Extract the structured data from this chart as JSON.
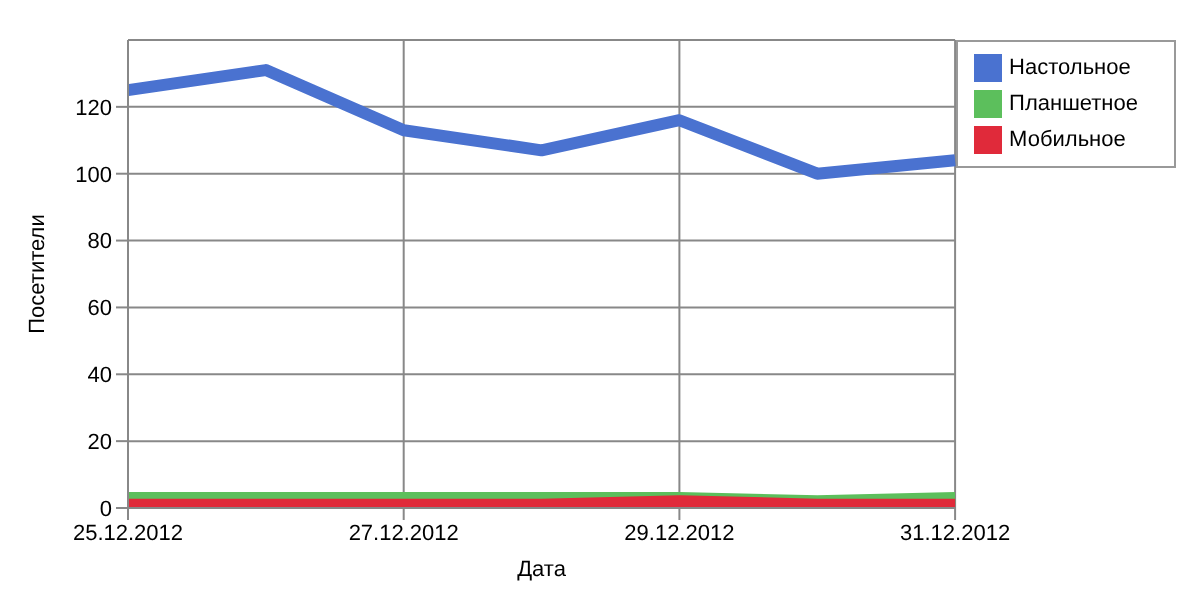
{
  "chart_data": {
    "type": "line",
    "xlabel": "Дата",
    "ylabel": "Посетители",
    "categories": [
      "25.12.2012",
      null,
      "27.12.2012",
      null,
      "29.12.2012",
      null,
      "31.12.2012"
    ],
    "series": [
      {
        "name": "Настольное",
        "color": "#4a72d0",
        "values": [
          125,
          131,
          113,
          107,
          116,
          100,
          104
        ]
      },
      {
        "name": "Планшетное",
        "color": "#5cbf5c",
        "values": [
          3,
          3,
          3,
          3,
          3,
          2,
          3
        ]
      },
      {
        "name": "Мобильное",
        "color": "#e02a3a",
        "values": [
          1,
          1,
          1,
          1,
          2,
          1,
          1
        ]
      }
    ],
    "ylim": [
      0,
      140
    ],
    "yticks": [
      0,
      20,
      40,
      60,
      80,
      100,
      120
    ],
    "grid": true,
    "legend": "top right",
    "marker": "none",
    "line_style": "solid"
  }
}
